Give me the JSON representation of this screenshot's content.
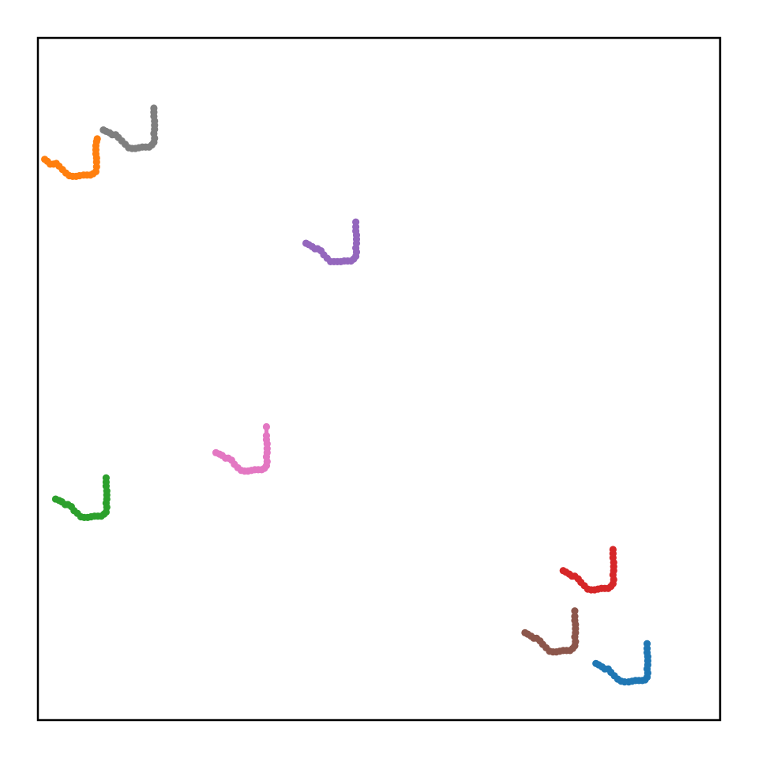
{
  "chart_data": {
    "type": "scatter",
    "title": "",
    "xlabel": "",
    "ylabel": "",
    "xlim": [
      0,
      100
    ],
    "ylim": [
      0,
      100
    ],
    "grid": false,
    "legend": "none",
    "marker": "dot",
    "series": [
      {
        "color": "#1f77b4",
        "points": [
          [
            81.8,
            8.3
          ],
          [
            82.2,
            8.1
          ],
          [
            82.7,
            7.8
          ],
          [
            83.1,
            7.5
          ],
          [
            83.6,
            7.5
          ],
          [
            84.0,
            7.0
          ],
          [
            84.5,
            6.5
          ],
          [
            85.0,
            6.0
          ],
          [
            85.5,
            5.7
          ],
          [
            86.0,
            5.6
          ],
          [
            86.6,
            5.6
          ],
          [
            87.1,
            5.7
          ],
          [
            87.6,
            5.8
          ],
          [
            88.1,
            5.8
          ],
          [
            88.6,
            5.8
          ],
          [
            89.0,
            5.9
          ],
          [
            89.3,
            6.3
          ],
          [
            89.4,
            6.9
          ],
          [
            89.3,
            7.5
          ],
          [
            89.4,
            8.1
          ],
          [
            89.4,
            8.7
          ],
          [
            89.4,
            9.3
          ],
          [
            89.3,
            9.9
          ],
          [
            89.3,
            10.5
          ],
          [
            89.3,
            11.2
          ]
        ]
      },
      {
        "color": "#ff7f0e",
        "points": [
          [
            1.0,
            82.2
          ],
          [
            1.4,
            81.9
          ],
          [
            1.8,
            81.5
          ],
          [
            2.3,
            81.5
          ],
          [
            2.7,
            81.6
          ],
          [
            3.1,
            81.2
          ],
          [
            3.6,
            80.7
          ],
          [
            4.1,
            80.2
          ],
          [
            4.6,
            79.8
          ],
          [
            5.1,
            79.7
          ],
          [
            5.6,
            79.7
          ],
          [
            6.1,
            79.8
          ],
          [
            6.7,
            79.9
          ],
          [
            7.2,
            79.9
          ],
          [
            7.7,
            79.9
          ],
          [
            8.1,
            80.1
          ],
          [
            8.5,
            80.4
          ],
          [
            8.6,
            81.1
          ],
          [
            8.6,
            81.8
          ],
          [
            8.6,
            82.4
          ],
          [
            8.5,
            83.0
          ],
          [
            8.5,
            83.6
          ],
          [
            8.5,
            84.2
          ],
          [
            8.6,
            84.8
          ],
          [
            8.7,
            85.2
          ]
        ]
      },
      {
        "color": "#2ca02c",
        "points": [
          [
            2.6,
            32.4
          ],
          [
            3.1,
            32.2
          ],
          [
            3.5,
            32.0
          ],
          [
            4.0,
            31.6
          ],
          [
            4.4,
            31.6
          ],
          [
            4.9,
            31.3
          ],
          [
            5.3,
            30.7
          ],
          [
            5.8,
            30.3
          ],
          [
            6.3,
            29.8
          ],
          [
            6.8,
            29.7
          ],
          [
            7.3,
            29.7
          ],
          [
            7.8,
            29.8
          ],
          [
            8.3,
            29.9
          ],
          [
            8.8,
            29.9
          ],
          [
            9.3,
            29.9
          ],
          [
            9.7,
            30.2
          ],
          [
            10.0,
            30.5
          ],
          [
            10.1,
            31.2
          ],
          [
            10.0,
            31.8
          ],
          [
            10.1,
            32.4
          ],
          [
            10.1,
            33.0
          ],
          [
            10.1,
            33.6
          ],
          [
            10.0,
            34.3
          ],
          [
            10.0,
            34.9
          ],
          [
            10.0,
            35.5
          ]
        ]
      },
      {
        "color": "#d62728",
        "points": [
          [
            77.0,
            21.9
          ],
          [
            77.4,
            21.7
          ],
          [
            77.9,
            21.4
          ],
          [
            78.3,
            21.1
          ],
          [
            78.7,
            21.1
          ],
          [
            79.2,
            20.7
          ],
          [
            79.6,
            20.2
          ],
          [
            80.1,
            19.7
          ],
          [
            80.6,
            19.2
          ],
          [
            81.1,
            19.1
          ],
          [
            81.6,
            19.1
          ],
          [
            82.1,
            19.2
          ],
          [
            82.6,
            19.3
          ],
          [
            83.1,
            19.3
          ],
          [
            83.6,
            19.3
          ],
          [
            84.0,
            19.6
          ],
          [
            84.3,
            20.0
          ],
          [
            84.4,
            20.6
          ],
          [
            84.3,
            21.3
          ],
          [
            84.4,
            21.9
          ],
          [
            84.4,
            22.5
          ],
          [
            84.4,
            23.1
          ],
          [
            84.3,
            23.8
          ],
          [
            84.3,
            24.4
          ],
          [
            84.3,
            25.0
          ]
        ]
      },
      {
        "color": "#9467bd",
        "points": [
          [
            39.3,
            69.9
          ],
          [
            39.7,
            69.7
          ],
          [
            40.2,
            69.4
          ],
          [
            40.6,
            69.1
          ],
          [
            41.0,
            69.1
          ],
          [
            41.5,
            68.8
          ],
          [
            41.9,
            68.2
          ],
          [
            42.4,
            67.7
          ],
          [
            42.9,
            67.2
          ],
          [
            43.4,
            67.2
          ],
          [
            43.9,
            67.2
          ],
          [
            44.4,
            67.2
          ],
          [
            44.9,
            67.3
          ],
          [
            45.4,
            67.3
          ],
          [
            45.9,
            67.3
          ],
          [
            46.3,
            67.6
          ],
          [
            46.6,
            68.0
          ],
          [
            46.7,
            68.6
          ],
          [
            46.6,
            69.2
          ],
          [
            46.7,
            69.9
          ],
          [
            46.7,
            70.5
          ],
          [
            46.7,
            71.1
          ],
          [
            46.6,
            71.7
          ],
          [
            46.6,
            72.3
          ],
          [
            46.6,
            73.0
          ]
        ]
      },
      {
        "color": "#8c564b",
        "points": [
          [
            71.4,
            12.8
          ],
          [
            71.8,
            12.6
          ],
          [
            72.3,
            12.3
          ],
          [
            72.7,
            12.0
          ],
          [
            73.1,
            12.0
          ],
          [
            73.6,
            11.6
          ],
          [
            74.0,
            11.1
          ],
          [
            74.5,
            10.6
          ],
          [
            75.0,
            10.1
          ],
          [
            75.5,
            10.0
          ],
          [
            76.0,
            10.0
          ],
          [
            76.5,
            10.1
          ],
          [
            77.0,
            10.2
          ],
          [
            77.5,
            10.2
          ],
          [
            78.0,
            10.2
          ],
          [
            78.4,
            10.5
          ],
          [
            78.7,
            10.9
          ],
          [
            78.8,
            11.5
          ],
          [
            78.7,
            12.2
          ],
          [
            78.8,
            12.8
          ],
          [
            78.8,
            13.4
          ],
          [
            78.8,
            14.0
          ],
          [
            78.7,
            14.6
          ],
          [
            78.7,
            15.2
          ],
          [
            78.7,
            16.0
          ]
        ]
      },
      {
        "color": "#e377c2",
        "points": [
          [
            26.1,
            39.2
          ],
          [
            26.6,
            39.0
          ],
          [
            27.0,
            38.8
          ],
          [
            27.5,
            38.4
          ],
          [
            27.9,
            38.4
          ],
          [
            28.4,
            38.1
          ],
          [
            28.8,
            37.5
          ],
          [
            29.3,
            37.0
          ],
          [
            29.8,
            36.6
          ],
          [
            30.3,
            36.5
          ],
          [
            30.8,
            36.5
          ],
          [
            31.3,
            36.6
          ],
          [
            31.8,
            36.7
          ],
          [
            32.3,
            36.7
          ],
          [
            32.8,
            36.7
          ],
          [
            33.2,
            36.9
          ],
          [
            33.5,
            37.3
          ],
          [
            33.6,
            37.9
          ],
          [
            33.5,
            38.6
          ],
          [
            33.6,
            39.2
          ],
          [
            33.6,
            39.8
          ],
          [
            33.6,
            40.5
          ],
          [
            33.5,
            41.1
          ],
          [
            33.5,
            41.7
          ],
          [
            33.5,
            43.0
          ]
        ]
      },
      {
        "color": "#7f7f7f",
        "points": [
          [
            9.6,
            86.5
          ],
          [
            10.0,
            86.3
          ],
          [
            10.5,
            86.1
          ],
          [
            10.9,
            85.8
          ],
          [
            11.4,
            85.8
          ],
          [
            11.8,
            85.4
          ],
          [
            12.3,
            84.9
          ],
          [
            12.8,
            84.4
          ],
          [
            13.3,
            83.9
          ],
          [
            13.8,
            83.8
          ],
          [
            14.3,
            83.8
          ],
          [
            14.8,
            83.9
          ],
          [
            15.3,
            84.0
          ],
          [
            15.8,
            84.0
          ],
          [
            16.3,
            84.0
          ],
          [
            16.7,
            84.3
          ],
          [
            17.0,
            84.7
          ],
          [
            17.1,
            85.3
          ],
          [
            17.0,
            86.0
          ],
          [
            17.1,
            86.6
          ],
          [
            17.1,
            87.2
          ],
          [
            17.1,
            87.8
          ],
          [
            17.0,
            88.5
          ],
          [
            17.0,
            89.1
          ],
          [
            17.0,
            89.7
          ]
        ]
      }
    ]
  }
}
